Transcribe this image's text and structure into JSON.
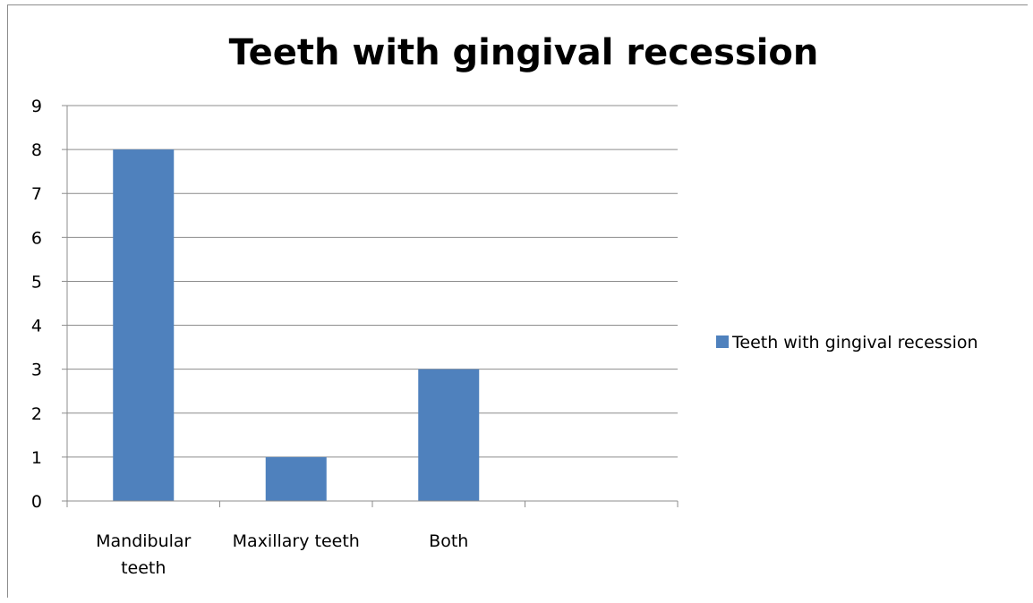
{
  "chart_data": {
    "type": "bar",
    "title": "Teeth with gingival recession",
    "categories": [
      "Mandibular teeth",
      "Maxillary teeth",
      "Both",
      ""
    ],
    "category_lines": [
      [
        "Mandibular",
        "teeth"
      ],
      [
        "Maxillary teeth"
      ],
      [
        "Both"
      ],
      []
    ],
    "series": [
      {
        "name": "Teeth with gingival recession",
        "values": [
          8,
          1,
          3,
          null
        ],
        "color": "#4f81bd"
      }
    ],
    "xlabel": "",
    "ylabel": "",
    "ylim": [
      0,
      9
    ],
    "yticks": [
      0,
      1,
      2,
      3,
      4,
      5,
      6,
      7,
      8,
      9
    ],
    "grid": true,
    "legend_position": "right"
  }
}
